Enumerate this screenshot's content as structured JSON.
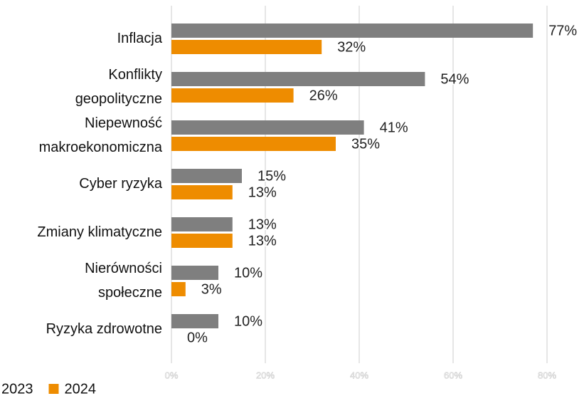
{
  "chart_data": {
    "type": "bar",
    "orientation": "horizontal",
    "categories": [
      "Inflacja",
      "Konflikty\ngeopolityczne",
      "Niepewność\nmakroekonomiczna",
      "Cyber ryzyka",
      "Zmiany klimatyczne",
      "Nierówności\nspołeczne",
      "Ryzyka zdrowotne"
    ],
    "series": [
      {
        "name": "2023",
        "color": "#7f7f7f",
        "values": [
          77,
          54,
          41,
          15,
          13,
          10,
          10
        ],
        "value_labels": [
          "77%",
          "54%",
          "41%",
          "15%",
          "13%",
          "10%",
          "10%"
        ]
      },
      {
        "name": "2024",
        "color": "#ee8c00",
        "values": [
          32,
          26,
          35,
          13,
          13,
          3,
          0
        ],
        "value_labels": [
          "32%",
          "26%",
          "35%",
          "13%",
          "13%",
          "3%",
          "0%"
        ]
      }
    ],
    "xlim": [
      0,
      80
    ],
    "xticks": [
      {
        "value": 0,
        "label": "0%"
      },
      {
        "value": 20,
        "label": "20%"
      },
      {
        "value": 40,
        "label": "40%"
      },
      {
        "value": 60,
        "label": "60%"
      },
      {
        "value": 80,
        "label": "80%"
      }
    ],
    "grid": true,
    "legend": "bottom"
  }
}
